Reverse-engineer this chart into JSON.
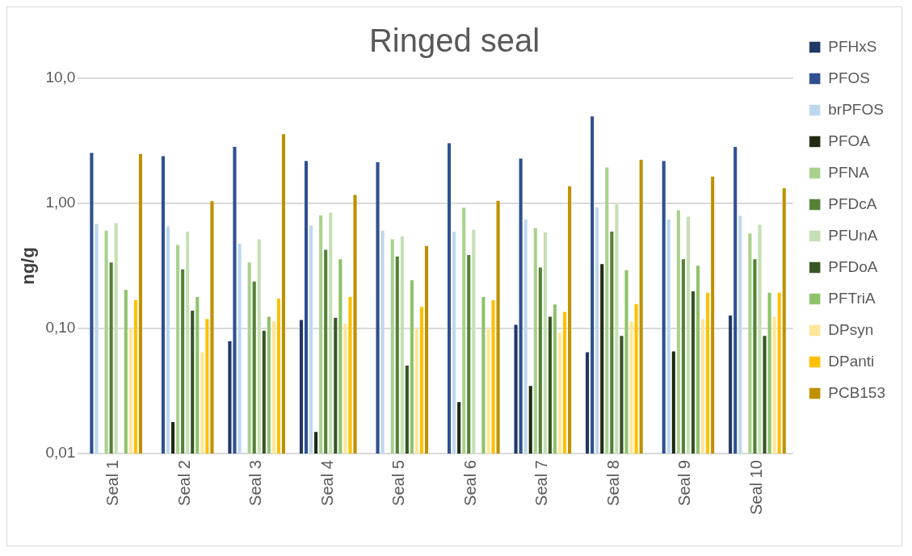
{
  "chart_data": {
    "type": "bar",
    "title": "Ringed seal",
    "ylabel": "ng/g",
    "log": true,
    "grid": "y",
    "legend": "right",
    "categories": [
      "Seal 1",
      "Seal 2",
      "Seal 3",
      "Seal 4",
      "Seal 5",
      "Seal 6",
      "Seal 7",
      "Seal 8",
      "Seal 9",
      "Seal 10"
    ],
    "ylim": [
      0.01,
      10
    ],
    "yticks": [
      {
        "value": 0.01,
        "label": "0,01"
      },
      {
        "value": 0.1,
        "label": "0,10"
      },
      {
        "value": 1,
        "label": "1,00"
      },
      {
        "value": 10,
        "label": "10,0"
      }
    ],
    "series": [
      {
        "name": "PFHxS",
        "color": "#1f3864",
        "values": [
          null,
          null,
          0.08,
          0.118,
          null,
          null,
          0.108,
          0.065,
          null,
          0.128
        ]
      },
      {
        "name": "PFOS",
        "color": "#2f5090",
        "values": [
          2.55,
          2.4,
          2.85,
          2.2,
          2.15,
          3.05,
          2.3,
          5.0,
          2.2,
          2.85
        ]
      },
      {
        "name": "brPFOS",
        "color": "#bdd7ee",
        "values": [
          0.69,
          0.66,
          0.48,
          0.67,
          0.61,
          0.6,
          0.75,
          0.94,
          0.75,
          0.8
        ]
      },
      {
        "name": "PFOA",
        "color": "#1e2a12",
        "values": [
          null,
          0.018,
          null,
          0.015,
          null,
          0.026,
          0.035,
          0.33,
          0.066,
          null
        ]
      },
      {
        "name": "PFNA",
        "color": "#a9d18e",
        "values": [
          0.61,
          0.47,
          0.34,
          0.81,
          0.52,
          0.93,
          0.64,
          1.95,
          0.89,
          0.58
        ]
      },
      {
        "name": "PFDcA",
        "color": "#548235",
        "values": [
          0.34,
          0.3,
          0.24,
          0.43,
          0.38,
          0.39,
          0.31,
          0.6,
          0.36,
          0.36
        ]
      },
      {
        "name": "PFUnA",
        "color": "#c5e0b4",
        "values": [
          0.7,
          0.6,
          0.52,
          0.85,
          0.55,
          0.62,
          0.59,
          1.0,
          0.79,
          0.68
        ]
      },
      {
        "name": "PFDoA",
        "color": "#375623",
        "values": [
          null,
          0.14,
          0.097,
          0.123,
          0.051,
          null,
          0.125,
          0.088,
          0.2,
          0.088
        ]
      },
      {
        "name": "PFTriA",
        "color": "#8fc36b",
        "values": [
          0.205,
          0.18,
          0.125,
          0.36,
          0.245,
          0.18,
          0.157,
          0.295,
          0.32,
          0.195
        ]
      },
      {
        "name": "DPsyn",
        "color": "#ffe699",
        "values": [
          0.1,
          0.065,
          0.115,
          0.11,
          0.1,
          0.1,
          0.093,
          0.115,
          0.12,
          0.125
        ]
      },
      {
        "name": "DPanti",
        "color": "#ffc000",
        "values": [
          0.17,
          0.12,
          0.175,
          0.18,
          0.15,
          0.17,
          0.137,
          0.158,
          0.195,
          0.195
        ]
      },
      {
        "name": "PCB153",
        "color": "#bf9000",
        "values": [
          2.5,
          1.05,
          3.6,
          1.18,
          0.46,
          1.06,
          1.38,
          2.25,
          1.65,
          1.33
        ]
      }
    ]
  }
}
